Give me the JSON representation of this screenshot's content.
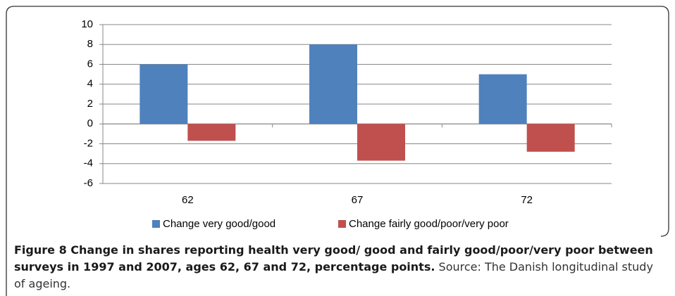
{
  "chart_data": {
    "type": "bar",
    "categories": [
      "62",
      "67",
      "72"
    ],
    "series": [
      {
        "name": "Change very good/good",
        "color": "#4f81bd",
        "values": [
          6,
          8,
          5
        ]
      },
      {
        "name": "Change fairly good/poor/very poor",
        "color": "#c0504d",
        "values": [
          -1.7,
          -3.7,
          -2.8
        ]
      }
    ],
    "ylim": [
      -6,
      10
    ],
    "yticks": [
      -6,
      -4,
      -2,
      0,
      2,
      4,
      6,
      8,
      10
    ],
    "grid": true,
    "legend": "bottom"
  },
  "caption": {
    "title": "Figure 8 Change in shares reporting health very good/ good and fairly good/poor/very poor between surveys in 1997 and 2007, ages 62, 67 and 72, percentage points.",
    "text": "Source: The Danish longitudinal study of ageing."
  }
}
